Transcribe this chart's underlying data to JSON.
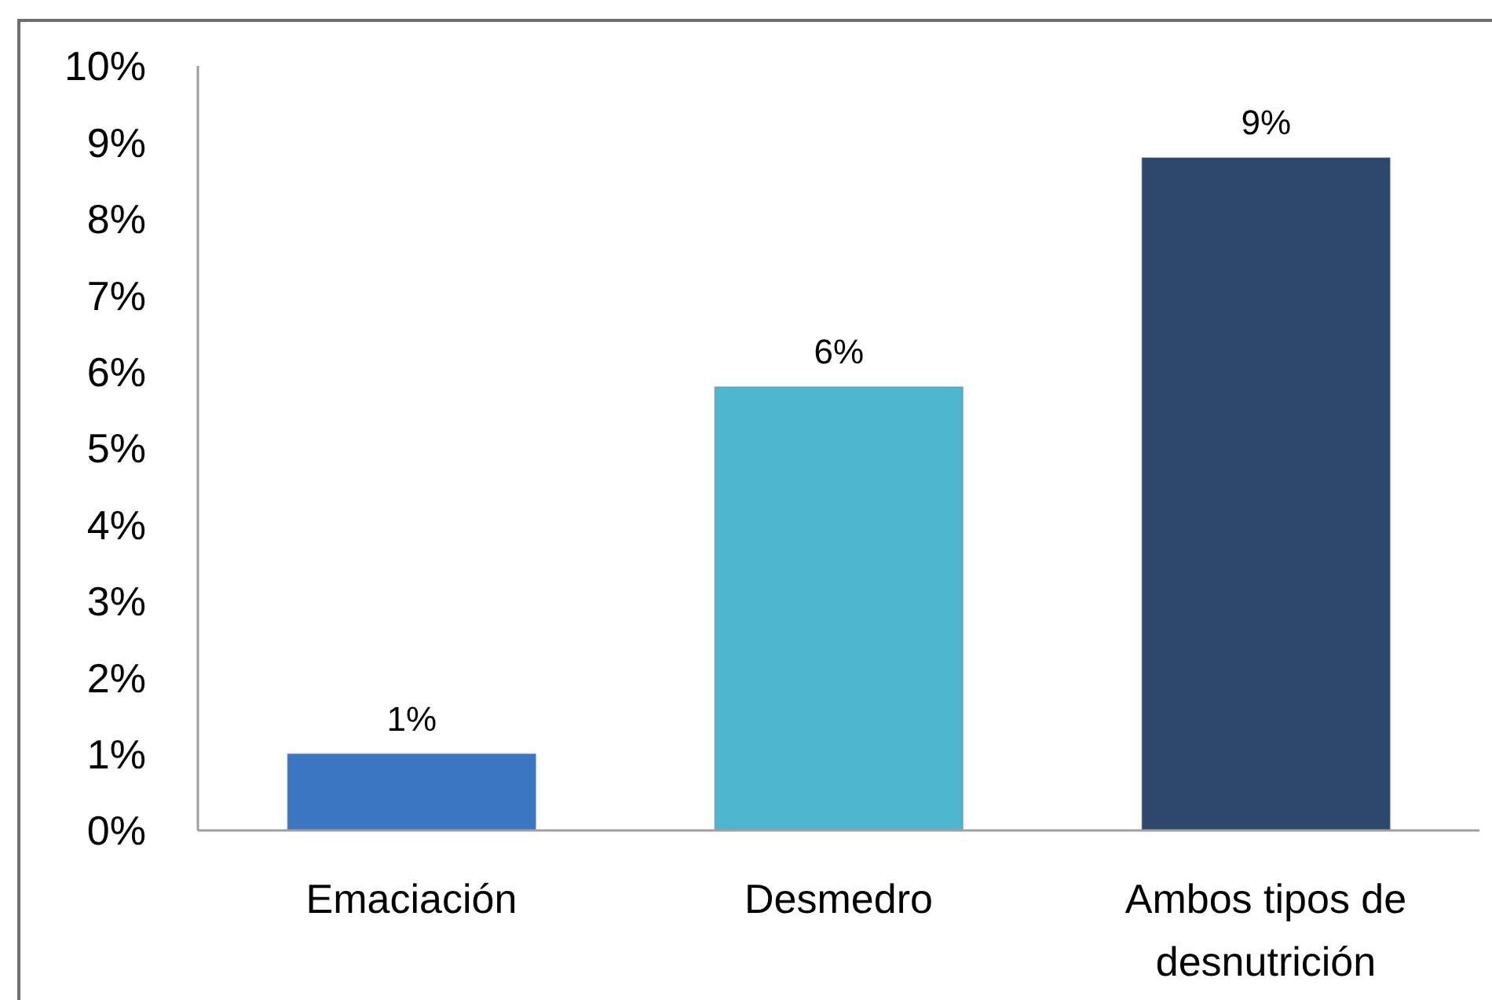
{
  "chart_data": {
    "type": "bar",
    "categories": [
      "Emaciación",
      "Desmedro",
      "Ambos tipos de desnutrición"
    ],
    "values": [
      1.0,
      5.8,
      8.8
    ],
    "colors": [
      "#3a76c2",
      "#4fb6cf",
      "#2c486c"
    ],
    "value_labels": [
      "1%",
      "6%",
      "9%"
    ],
    "ylim": [
      0,
      10
    ],
    "yticks": [
      {
        "value": 0,
        "label": "0%"
      },
      {
        "value": 1,
        "label": "1%"
      },
      {
        "value": 2,
        "label": "2%"
      },
      {
        "value": 3,
        "label": "3%"
      },
      {
        "value": 4,
        "label": "4%"
      },
      {
        "value": 5,
        "label": "5%"
      },
      {
        "value": 6,
        "label": "6%"
      },
      {
        "value": 7,
        "label": "7%"
      },
      {
        "value": 8,
        "label": "8%"
      },
      {
        "value": 9,
        "label": "9%"
      },
      {
        "value": 10,
        "label": "10%"
      }
    ]
  }
}
